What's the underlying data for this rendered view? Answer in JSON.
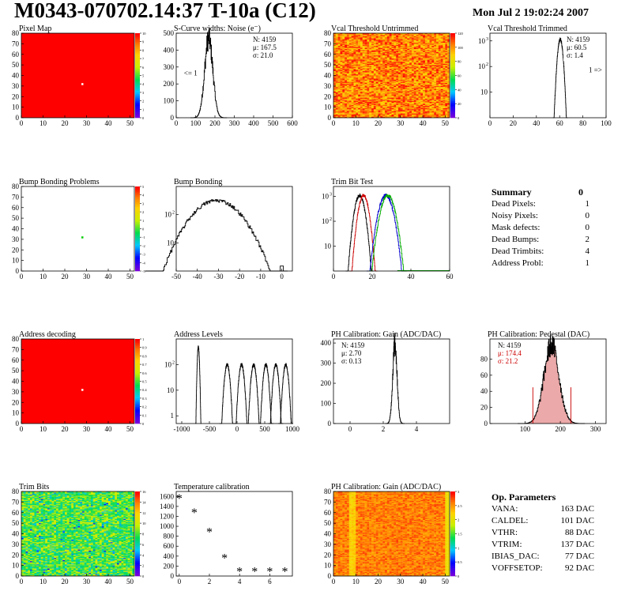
{
  "header": {
    "title": "M0343-070702.14:37 T-10a (C12)",
    "date": "Mon Jul  2 19:02:24 2007"
  },
  "summary": {
    "title": "Summary",
    "value": "0",
    "rows": [
      {
        "label": "Dead Pixels:",
        "value": "1"
      },
      {
        "label": "Noisy Pixels:",
        "value": "0"
      },
      {
        "label": "Mask defects:",
        "value": "0"
      },
      {
        "label": "Dead Bumps:",
        "value": "2"
      },
      {
        "label": "Dead Trimbits:",
        "value": "4"
      },
      {
        "label": "Address Probl:",
        "value": "1"
      }
    ]
  },
  "op_params": {
    "title": "Op. Parameters",
    "rows": [
      {
        "label": "VANA:",
        "value": "163 DAC"
      },
      {
        "label": "CALDEL:",
        "value": "101 DAC"
      },
      {
        "label": "VTHR:",
        "value": "88 DAC"
      },
      {
        "label": "VTRIM:",
        "value": "137 DAC"
      },
      {
        "label": "IBIAS_DAC:",
        "value": "77 DAC"
      },
      {
        "label": "VOFFSETOP:",
        "value": "92 DAC"
      }
    ]
  },
  "chart_data": [
    {
      "id": "pixel-map",
      "type": "heatmap",
      "title": "Pixel Map",
      "xlim": [
        0,
        52
      ],
      "ylim": [
        0,
        80
      ],
      "xticks": [
        0,
        10,
        20,
        30,
        40,
        50
      ],
      "yticks": [
        0,
        10,
        20,
        30,
        40,
        50,
        60,
        70,
        80
      ],
      "fill": "uniform",
      "value": 10,
      "zlim": [
        0,
        10
      ],
      "zticks": [
        0,
        1,
        2,
        3,
        4,
        5,
        6,
        7,
        8,
        9,
        10
      ],
      "markers": [
        {
          "x": 28,
          "y": 32
        }
      ]
    },
    {
      "id": "noise",
      "type": "histogram",
      "title": "S-Curve widths: Noise (e⁻)",
      "xlim": [
        0,
        600
      ],
      "ylim": [
        0,
        500
      ],
      "xticks": [
        0,
        100,
        200,
        300,
        400,
        500,
        600
      ],
      "yticks": [
        0,
        100,
        200,
        300,
        400,
        500
      ],
      "series": [
        {
          "mean": 167.5,
          "sigma": 21.0,
          "peak": 470,
          "color": "#000000"
        }
      ],
      "stats": [
        "N: 4159",
        "μ: 167.5",
        "σ: 21.0"
      ],
      "annotations": [
        {
          "text": "<= 1",
          "x": 40,
          "y": 250
        }
      ]
    },
    {
      "id": "vcal-untrimmed",
      "type": "heatmap",
      "title": "Vcal Threshold Untrimmed",
      "xlim": [
        0,
        52
      ],
      "ylim": [
        0,
        80
      ],
      "xticks": [
        0,
        10,
        20,
        30,
        40,
        50
      ],
      "yticks": [
        0,
        10,
        20,
        30,
        40,
        50,
        60,
        70,
        80
      ],
      "fill": "noise-hot",
      "zlim": [
        0,
        120
      ],
      "zticks": [
        0,
        20,
        40,
        60,
        80,
        100,
        120
      ]
    },
    {
      "id": "vcal-trimmed",
      "type": "histogram",
      "title": "Vcal Threshold Trimmed",
      "yscale": "log",
      "xlim": [
        0,
        100
      ],
      "ylim": [
        1,
        2000
      ],
      "xticks": [
        0,
        20,
        40,
        60,
        80,
        100
      ],
      "yticks": [
        10,
        100,
        1000
      ],
      "series": [
        {
          "mean": 60.5,
          "sigma": 1.4,
          "peak": 1150,
          "color": "#000000"
        }
      ],
      "stats": [
        "N: 4159",
        "μ: 60.5",
        "σ:  1.4"
      ],
      "annotations": [
        {
          "text": "1 =>",
          "x": 85,
          "y": 60
        }
      ]
    },
    {
      "id": "bump-problems",
      "type": "heatmap",
      "title": "Bump Bonding Problems",
      "xlim": [
        0,
        52
      ],
      "ylim": [
        0,
        80
      ],
      "xticks": [
        0,
        10,
        20,
        30,
        40,
        50
      ],
      "yticks": [
        0,
        10,
        20,
        30,
        40,
        50,
        60,
        70,
        80
      ],
      "fill": "empty",
      "zlim": [
        -5,
        5
      ],
      "zticks": [
        -5,
        -4,
        -3,
        -2,
        -1,
        0,
        1,
        2,
        3,
        4,
        5
      ],
      "markers": [
        {
          "x": 28,
          "y": 32,
          "color": "#00cc00"
        }
      ]
    },
    {
      "id": "bump-bonding",
      "type": "histogram",
      "title": "Bump Bonding",
      "yscale": "log",
      "xlim": [
        -50,
        5
      ],
      "ylim": [
        1,
        1000
      ],
      "xticks": [
        -50,
        -40,
        -30,
        -20,
        -10,
        0
      ],
      "yticks": [
        10,
        100
      ],
      "series": [
        {
          "mean": -31,
          "sigma": 7.5,
          "peak": 320,
          "color": "#000000",
          "extra": {
            "x": 0,
            "h": 1.5
          }
        }
      ]
    },
    {
      "id": "trim-bit-test",
      "type": "histogram",
      "title": "Trim Bit Test",
      "yscale": "log",
      "xlim": [
        0,
        60
      ],
      "ylim": [
        1,
        2500
      ],
      "xticks": [
        0,
        20,
        40,
        60
      ],
      "yticks": [
        10,
        100,
        1000
      ],
      "series": [
        {
          "mean": 13.5,
          "sigma": 1.6,
          "peak": 1100,
          "color": "#000000"
        },
        {
          "mean": 15.5,
          "sigma": 1.6,
          "peak": 1100,
          "color": "#cc0000"
        },
        {
          "mean": 27,
          "sigma": 2.2,
          "peak": 1100,
          "color": "#0000cc"
        },
        {
          "mean": 28,
          "sigma": 2.2,
          "peak": 1100,
          "color": "#00aa00"
        }
      ]
    },
    {
      "id": "address-decoding",
      "type": "heatmap",
      "title": "Address decoding",
      "xlim": [
        0,
        52
      ],
      "ylim": [
        0,
        80
      ],
      "xticks": [
        0,
        10,
        20,
        30,
        40,
        50
      ],
      "yticks": [
        0,
        10,
        20,
        30,
        40,
        50,
        60,
        70,
        80
      ],
      "fill": "uniform",
      "value": 1,
      "zlim": [
        0,
        1
      ],
      "zticks": [
        0,
        0.1,
        0.2,
        0.3,
        0.4,
        0.5,
        0.6,
        0.7,
        0.8,
        0.9,
        1
      ],
      "markers": [
        {
          "x": 28,
          "y": 32
        }
      ]
    },
    {
      "id": "address-levels",
      "type": "histogram",
      "title": "Address Levels",
      "yscale": "log",
      "xlim": [
        -1100,
        1000
      ],
      "ylim": [
        0.5,
        1000
      ],
      "xticks": [
        -1000,
        -500,
        0,
        500,
        1000
      ],
      "yticks": [
        1,
        10,
        100
      ],
      "series": [
        {
          "mean": -700,
          "sigma": 12,
          "peak": 500,
          "color": "#000000"
        },
        {
          "mean": -180,
          "sigma": 30,
          "peak": 100,
          "color": "#000000"
        },
        {
          "mean": 80,
          "sigma": 30,
          "peak": 100,
          "color": "#000000"
        },
        {
          "mean": 300,
          "sigma": 30,
          "peak": 100,
          "color": "#000000"
        },
        {
          "mean": 520,
          "sigma": 30,
          "peak": 100,
          "color": "#000000"
        },
        {
          "mean": 700,
          "sigma": 30,
          "peak": 100,
          "color": "#000000"
        },
        {
          "mean": 880,
          "sigma": 30,
          "peak": 100,
          "color": "#000000"
        }
      ]
    },
    {
      "id": "ph-gain",
      "type": "histogram",
      "title": "PH Calibration: Gain (ADC/DAC)",
      "xlim": [
        -1,
        6
      ],
      "ylim": [
        0,
        420
      ],
      "xticks": [
        0,
        2,
        4
      ],
      "yticks": [
        0,
        100,
        200,
        300,
        400
      ],
      "series": [
        {
          "mean": 2.7,
          "sigma": 0.13,
          "peak": 400,
          "color": "#000000"
        }
      ],
      "stats": [
        "N: 4159",
        "μ: 2.70",
        "σ: 0.13"
      ]
    },
    {
      "id": "ph-pedestal",
      "type": "histogram",
      "title": "PH Calibration: Pedestal (DAC)",
      "xlim": [
        0,
        330
      ],
      "ylim": [
        0,
        105
      ],
      "xticks": [
        100,
        200,
        300
      ],
      "yticks": [
        0,
        20,
        40,
        60,
        80
      ],
      "series": [
        {
          "mean": 174.4,
          "sigma": 21.2,
          "peak": 98,
          "color": "#000000",
          "fill": "#e07070"
        }
      ],
      "cut_lines": [
        {
          "x": 122,
          "h": 45
        },
        {
          "x": 230,
          "h": 45
        }
      ],
      "stats": [
        "N: 4159",
        "μ: 174.4",
        "σ: 21.2"
      ],
      "stats_colors": [
        "#000000",
        "#cc0000",
        "#cc0000"
      ]
    },
    {
      "id": "trim-bits",
      "type": "heatmap",
      "title": "Trim Bits",
      "xlim": [
        0,
        52
      ],
      "ylim": [
        0,
        80
      ],
      "xticks": [
        0,
        10,
        20,
        30,
        40,
        50
      ],
      "yticks": [
        0,
        10,
        20,
        30,
        40,
        50,
        60,
        70,
        80
      ],
      "fill": "noise-green",
      "zlim": [
        0,
        16
      ],
      "zticks": [
        0,
        2,
        4,
        6,
        8,
        10,
        12,
        14,
        16
      ]
    },
    {
      "id": "temperature-calibration",
      "type": "scatter",
      "title": "Temperature calibration",
      "xlim": [
        -0.2,
        7.5
      ],
      "ylim": [
        0,
        1700
      ],
      "xticks": [
        0,
        2,
        4,
        6
      ],
      "yticks": [
        0,
        200,
        400,
        600,
        800,
        1000,
        1200,
        1400,
        1600
      ],
      "marker": "*",
      "points": [
        {
          "x": 0,
          "y": 1560
        },
        {
          "x": 1,
          "y": 1270
        },
        {
          "x": 2,
          "y": 880
        },
        {
          "x": 3,
          "y": 360
        },
        {
          "x": 4,
          "y": 90
        },
        {
          "x": 5,
          "y": 90
        },
        {
          "x": 6,
          "y": 90
        },
        {
          "x": 7,
          "y": 90
        }
      ]
    },
    {
      "id": "ph-gain-map",
      "type": "heatmap",
      "title": "PH Calibration: Gain (ADC/DAC)",
      "xlim": [
        0,
        52
      ],
      "ylim": [
        0,
        80
      ],
      "xticks": [
        0,
        10,
        20,
        30,
        40,
        50
      ],
      "yticks": [
        0,
        10,
        20,
        30,
        40,
        50,
        60,
        70,
        80
      ],
      "fill": "noise-orange",
      "zlim": [
        0,
        3
      ],
      "zticks": [
        0,
        0.5,
        1,
        1.5,
        2,
        2.5,
        3
      ]
    }
  ]
}
